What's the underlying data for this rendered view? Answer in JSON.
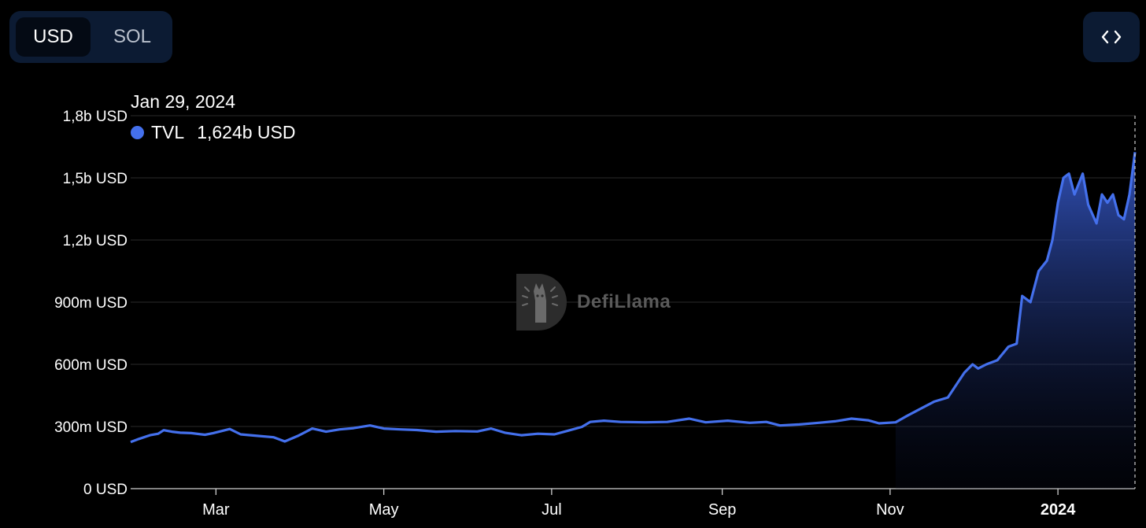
{
  "currency_toggle": {
    "options": [
      "USD",
      "SOL"
    ],
    "selected": "USD"
  },
  "embed_button": {
    "icon": "code-icon"
  },
  "tooltip": {
    "date": "Jan 29, 2024",
    "series_name": "TVL",
    "value": "1,624b USD",
    "dot_color": "#4470ec"
  },
  "watermark": {
    "text": "DefiLlama",
    "icon": "llama-logo-icon"
  },
  "chart_data": {
    "type": "area",
    "series": [
      {
        "name": "TVL",
        "color": "#4470ec",
        "points": [
          [
            "2023-01-29",
            0.225
          ],
          [
            "2023-02-01",
            0.24
          ],
          [
            "2023-02-05",
            0.258
          ],
          [
            "2023-02-08",
            0.265
          ],
          [
            "2023-02-10",
            0.282
          ],
          [
            "2023-02-13",
            0.275
          ],
          [
            "2023-02-16",
            0.27
          ],
          [
            "2023-02-20",
            0.268
          ],
          [
            "2023-02-25",
            0.26
          ],
          [
            "2023-02-28",
            0.268
          ],
          [
            "2023-03-06",
            0.288
          ],
          [
            "2023-03-10",
            0.262
          ],
          [
            "2023-03-16",
            0.255
          ],
          [
            "2023-03-22",
            0.248
          ],
          [
            "2023-03-26",
            0.228
          ],
          [
            "2023-03-31",
            0.256
          ],
          [
            "2023-04-05",
            0.29
          ],
          [
            "2023-04-10",
            0.275
          ],
          [
            "2023-04-15",
            0.286
          ],
          [
            "2023-04-20",
            0.292
          ],
          [
            "2023-04-26",
            0.305
          ],
          [
            "2023-05-01",
            0.29
          ],
          [
            "2023-05-07",
            0.286
          ],
          [
            "2023-05-13",
            0.283
          ],
          [
            "2023-05-20",
            0.275
          ],
          [
            "2023-05-27",
            0.278
          ],
          [
            "2023-06-04",
            0.276
          ],
          [
            "2023-06-09",
            0.29
          ],
          [
            "2023-06-14",
            0.27
          ],
          [
            "2023-06-20",
            0.258
          ],
          [
            "2023-06-26",
            0.265
          ],
          [
            "2023-07-02",
            0.262
          ],
          [
            "2023-07-07",
            0.28
          ],
          [
            "2023-07-12",
            0.298
          ],
          [
            "2023-07-15",
            0.322
          ],
          [
            "2023-07-20",
            0.328
          ],
          [
            "2023-07-26",
            0.322
          ],
          [
            "2023-08-04",
            0.32
          ],
          [
            "2023-08-12",
            0.322
          ],
          [
            "2023-08-20",
            0.338
          ],
          [
            "2023-08-26",
            0.32
          ],
          [
            "2023-09-03",
            0.328
          ],
          [
            "2023-09-11",
            0.318
          ],
          [
            "2023-09-17",
            0.322
          ],
          [
            "2023-09-22",
            0.305
          ],
          [
            "2023-09-29",
            0.31
          ],
          [
            "2023-10-06",
            0.318
          ],
          [
            "2023-10-12",
            0.325
          ],
          [
            "2023-10-18",
            0.338
          ],
          [
            "2023-10-24",
            0.33
          ],
          [
            "2023-10-28",
            0.315
          ],
          [
            "2023-11-03",
            0.32
          ],
          [
            "2023-11-07",
            0.35
          ],
          [
            "2023-11-12",
            0.385
          ],
          [
            "2023-11-17",
            0.42
          ],
          [
            "2023-11-22",
            0.44
          ],
          [
            "2023-11-25",
            0.5
          ],
          [
            "2023-11-28",
            0.56
          ],
          [
            "2023-12-01",
            0.6
          ],
          [
            "2023-12-03",
            0.58
          ],
          [
            "2023-12-06",
            0.6
          ],
          [
            "2023-12-10",
            0.62
          ],
          [
            "2023-12-14",
            0.685
          ],
          [
            "2023-12-17",
            0.7
          ],
          [
            "2023-12-19",
            0.93
          ],
          [
            "2023-12-22",
            0.9
          ],
          [
            "2023-12-25",
            1.05
          ],
          [
            "2023-12-28",
            1.1
          ],
          [
            "2023-12-30",
            1.2
          ],
          [
            "2024-01-01",
            1.38
          ],
          [
            "2024-01-03",
            1.5
          ],
          [
            "2024-01-05",
            1.52
          ],
          [
            "2024-01-07",
            1.42
          ],
          [
            "2024-01-10",
            1.52
          ],
          [
            "2024-01-12",
            1.37
          ],
          [
            "2024-01-15",
            1.28
          ],
          [
            "2024-01-17",
            1.42
          ],
          [
            "2024-01-19",
            1.38
          ],
          [
            "2024-01-21",
            1.42
          ],
          [
            "2024-01-23",
            1.32
          ],
          [
            "2024-01-25",
            1.3
          ],
          [
            "2024-01-27",
            1.42
          ],
          [
            "2024-01-29",
            1.624
          ]
        ]
      }
    ],
    "x_ticks": [
      {
        "date": "2023-03-01",
        "label": "Mar"
      },
      {
        "date": "2023-05-01",
        "label": "May"
      },
      {
        "date": "2023-07-01",
        "label": "Jul"
      },
      {
        "date": "2023-09-01",
        "label": "Sep"
      },
      {
        "date": "2023-11-01",
        "label": "Nov"
      },
      {
        "date": "2024-01-01",
        "label": "2024",
        "bold": true
      }
    ],
    "x_range": [
      "2023-01-29",
      "2024-01-29"
    ],
    "y_ticks": [
      {
        "value": 0,
        "label": "0 USD"
      },
      {
        "value": 0.3,
        "label": "300m USD"
      },
      {
        "value": 0.6,
        "label": "600m USD"
      },
      {
        "value": 0.9,
        "label": "900m USD"
      },
      {
        "value": 1.2,
        "label": "1,2b USD"
      },
      {
        "value": 1.5,
        "label": "1,5b USD"
      },
      {
        "value": 1.8,
        "label": "1,8b USD"
      }
    ],
    "ylim": [
      0,
      1.8
    ],
    "grid": true,
    "crosshair_date": "2024-01-29"
  }
}
